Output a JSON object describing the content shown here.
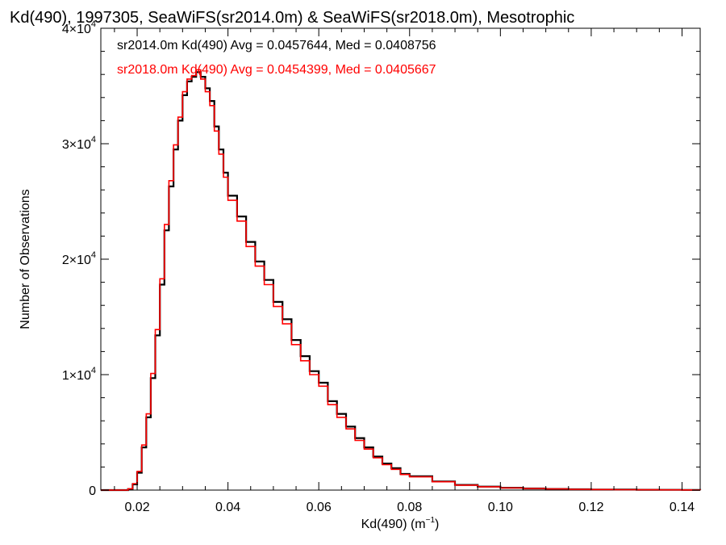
{
  "chart_data": {
    "type": "line",
    "title": "Kd(490), 1997305, SeaWiFS(sr2014.0m) & SeaWiFS(sr2018.0m), Mesotrophic",
    "xlabel_main": "Kd(490) (m",
    "xlabel_sup": "−1",
    "xlabel_end": ")",
    "ylabel": "Number of Observations",
    "xlim": [
      0.012,
      0.144
    ],
    "ylim": [
      0,
      40000
    ],
    "x_ticks": [
      {
        "value": 0.02,
        "label": "0.02"
      },
      {
        "value": 0.04,
        "label": "0.04"
      },
      {
        "value": 0.06,
        "label": "0.06"
      },
      {
        "value": 0.08,
        "label": "0.08"
      },
      {
        "value": 0.1,
        "label": "0.10"
      },
      {
        "value": 0.12,
        "label": "0.12"
      },
      {
        "value": 0.14,
        "label": "0.14"
      }
    ],
    "y_ticks": [
      {
        "value": 0,
        "base": "0",
        "exp": ""
      },
      {
        "value": 10000,
        "base": "1×10",
        "exp": "4"
      },
      {
        "value": 20000,
        "base": "2×10",
        "exp": "4"
      },
      {
        "value": 30000,
        "base": "3×10",
        "exp": "4"
      },
      {
        "value": 40000,
        "base": "4×10",
        "exp": "4"
      }
    ],
    "grid": false,
    "series": [
      {
        "name": "sr2014.0m",
        "color": "#000000",
        "legend": "sr2014.0m Kd(490) Avg = 0.0457644, Med = 0.0408756",
        "x": [
          0.012,
          0.014,
          0.016,
          0.018,
          0.019,
          0.02,
          0.021,
          0.022,
          0.023,
          0.024,
          0.025,
          0.026,
          0.027,
          0.028,
          0.029,
          0.03,
          0.031,
          0.032,
          0.033,
          0.034,
          0.035,
          0.036,
          0.037,
          0.038,
          0.039,
          0.04,
          0.042,
          0.044,
          0.046,
          0.048,
          0.05,
          0.052,
          0.054,
          0.056,
          0.058,
          0.06,
          0.062,
          0.064,
          0.066,
          0.068,
          0.07,
          0.072,
          0.074,
          0.076,
          0.078,
          0.08,
          0.085,
          0.09,
          0.095,
          0.1,
          0.105,
          0.11,
          0.115,
          0.12,
          0.125,
          0.13,
          0.135,
          0.14,
          0.144
        ],
        "y": [
          0,
          0,
          0,
          100,
          500,
          1500,
          3700,
          6300,
          9700,
          13400,
          17800,
          22500,
          26300,
          29500,
          32000,
          34200,
          35400,
          35800,
          36200,
          35800,
          34800,
          33700,
          31500,
          29500,
          27500,
          25500,
          23700,
          21500,
          19800,
          18200,
          16300,
          14800,
          13000,
          11600,
          10300,
          9300,
          7700,
          6600,
          5500,
          4500,
          3700,
          2900,
          2300,
          1900,
          1400,
          1200,
          750,
          450,
          300,
          200,
          140,
          100,
          70,
          50,
          40,
          30,
          20,
          15,
          10
        ]
      },
      {
        "name": "sr2018.0m",
        "color": "#ff0000",
        "legend": "sr2018.0m Kd(490) Avg = 0.0454399, Med = 0.0405667",
        "x": [
          0.012,
          0.014,
          0.016,
          0.018,
          0.019,
          0.02,
          0.021,
          0.022,
          0.023,
          0.024,
          0.025,
          0.026,
          0.027,
          0.028,
          0.029,
          0.03,
          0.031,
          0.032,
          0.033,
          0.034,
          0.035,
          0.036,
          0.037,
          0.038,
          0.039,
          0.04,
          0.042,
          0.044,
          0.046,
          0.048,
          0.05,
          0.052,
          0.054,
          0.056,
          0.058,
          0.06,
          0.062,
          0.064,
          0.066,
          0.068,
          0.07,
          0.072,
          0.074,
          0.076,
          0.078,
          0.08,
          0.085,
          0.09,
          0.095,
          0.1,
          0.105,
          0.11,
          0.115,
          0.12,
          0.125,
          0.13,
          0.135,
          0.14,
          0.144
        ],
        "y": [
          0,
          0,
          0,
          120,
          560,
          1620,
          3900,
          6600,
          10100,
          13900,
          18300,
          23000,
          26800,
          29900,
          32300,
          34500,
          35600,
          35900,
          36400,
          35600,
          34500,
          33300,
          31100,
          29100,
          27100,
          25100,
          23300,
          21100,
          19400,
          17800,
          15900,
          14400,
          12600,
          11200,
          10000,
          9000,
          7400,
          6300,
          5300,
          4300,
          3550,
          2800,
          2200,
          1800,
          1350,
          1150,
          720,
          430,
          290,
          190,
          130,
          95,
          65,
          48,
          38,
          28,
          18,
          14,
          9
        ]
      }
    ]
  }
}
